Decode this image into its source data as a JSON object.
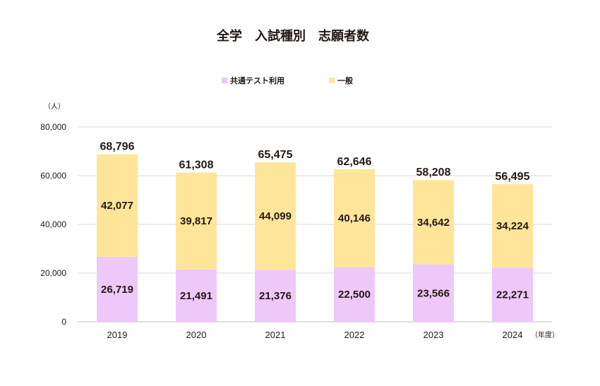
{
  "chart_data": {
    "type": "bar",
    "stacked": true,
    "title": "全学　入試種別　志願者数",
    "ylabel": "（人）",
    "xlabel": "（年度）",
    "categories": [
      "2019",
      "2020",
      "2021",
      "2022",
      "2023",
      "2024"
    ],
    "series": [
      {
        "name": "共通テスト利用",
        "color": "#eec8f8",
        "values": [
          26719,
          21491,
          21376,
          22500,
          23566,
          22271
        ]
      },
      {
        "name": "一般",
        "color": "#fee59a",
        "values": [
          42077,
          39817,
          44099,
          40146,
          34642,
          34224
        ]
      }
    ],
    "totals": [
      68796,
      61308,
      65475,
      62646,
      58208,
      56495
    ],
    "ylim": [
      0,
      80000
    ],
    "yticks": [
      0,
      20000,
      40000,
      60000,
      80000
    ],
    "grid": true,
    "legend": "top-center"
  }
}
